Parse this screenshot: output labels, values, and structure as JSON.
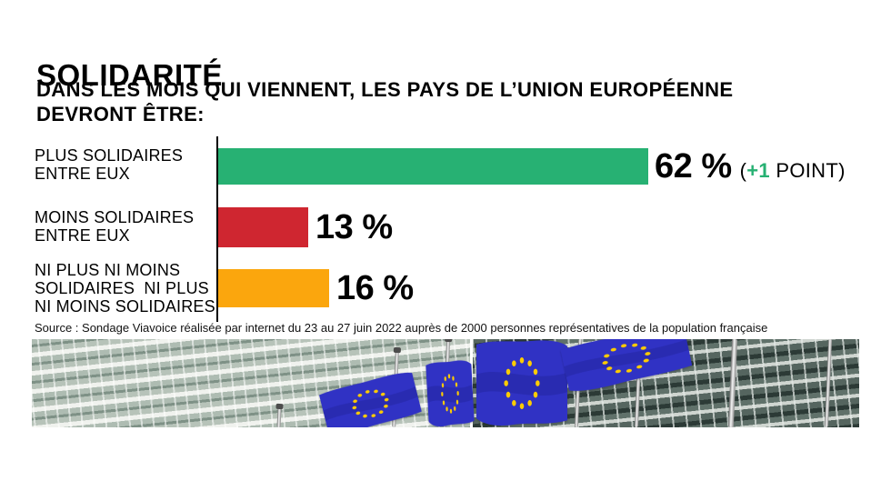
{
  "palette": {
    "green": "#27b173",
    "red": "#cf2630",
    "orange": "#fba60d",
    "text": "#000000",
    "flag_blue": "#3032c4",
    "star_yellow": "#ffcc00"
  },
  "header": {
    "title": "SOLIDARITÉ",
    "subtitle_line1": "DANS LES MOIS QUI VIENNENT, LES PAYS DE L’UNION EUROPÉENNE",
    "subtitle_line2": "DEVRONT ÊTRE:"
  },
  "chart_data": {
    "type": "bar",
    "orientation": "horizontal",
    "title": "SOLIDARITÉ",
    "question": "DANS LES MOIS QUI VIENNENT, LES PAYS DE L’UNION EUROPÉENNE DEVRONT ÊTRE:",
    "categories": [
      "PLUS SOLIDAIRES ENTRE EUX",
      "MOINS SOLIDAIRES ENTRE EUX",
      "NI PLUS NI MOINS SOLIDAIRES  NI PLUS NI MOINS SOLIDAIRES"
    ],
    "values": [
      62,
      13,
      16
    ],
    "unit": "%",
    "value_labels": [
      "62 %",
      "13 %",
      "16 %"
    ],
    "bar_colors": [
      "#27b173",
      "#cf2630",
      "#fba60d"
    ],
    "xlim": [
      0,
      100
    ],
    "grid": false,
    "legend": false,
    "annotations": [
      {
        "bar_index": 0,
        "text": "(+1 POINT)",
        "highlighted_part": "+1",
        "highlight_color": "#27b173"
      }
    ]
  },
  "rows": [
    {
      "label_lines": [
        "PLUS SOLIDAIRES",
        "ENTRE EUX"
      ],
      "value": 62,
      "value_label": "62 %",
      "color": "#27b173",
      "note_prefix": "(",
      "note_plus": "+1",
      "note_suffix": " POINT)"
    },
    {
      "label_lines": [
        "MOINS SOLIDAIRES",
        "ENTRE EUX"
      ],
      "value": 13,
      "value_label": "13 %",
      "color": "#cf2630"
    },
    {
      "label_lines": [
        "NI PLUS NI MOINS",
        "SOLIDAIRES  NI PLUS",
        "NI MOINS SOLIDAIRES"
      ],
      "value": 16,
      "value_label": "16 %",
      "color": "#fba60d"
    }
  ],
  "source": "Source : Sondage Viavoice réalisée par internet du 23 au 27 juin 2022 auprès de 2000 personnes représentatives de la population française"
}
